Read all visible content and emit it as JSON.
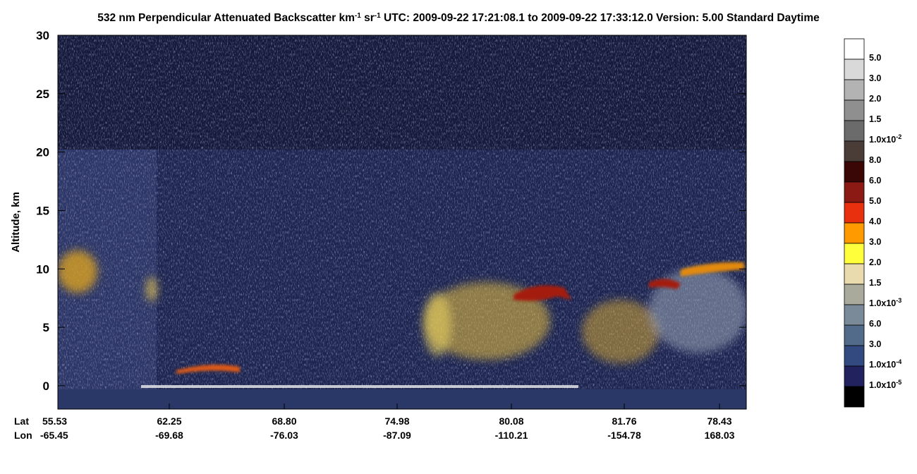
{
  "chart_data": {
    "type": "curtain",
    "title_parts": [
      {
        "text": "532 nm Perpendicular Attenuated Backscatter km"
      },
      {
        "text": "-1",
        "sup": true
      },
      {
        "text": " sr"
      },
      {
        "text": "-1",
        "sup": true
      },
      {
        "text": "  UTC: 2009-09-22 17:21:08.1 to 2009-09-22 17:33:12.0  Version: 5.00 Standard Daytime"
      }
    ],
    "y_label": "Altitude, km",
    "ylim": [
      -2,
      30
    ],
    "yticks": [
      0,
      5,
      10,
      15,
      20,
      25,
      30
    ],
    "x_row_labels": [
      "Lat",
      "Lon"
    ],
    "lat": [
      "55.53",
      "62.25",
      "68.80",
      "74.98",
      "80.08",
      "81.76",
      "78.43"
    ],
    "lon": [
      "-65.45",
      "-69.68",
      "-76.03",
      "-87.09",
      "-110.21",
      "-154.78",
      "168.03"
    ],
    "colorbar": {
      "colors": [
        "#ffffff",
        "#d9d9d9",
        "#b3b3b3",
        "#8f8f8f",
        "#6b6b6b",
        "#4a3d38",
        "#3a0606",
        "#8c1a14",
        "#e8300e",
        "#ff9b00",
        "#ffff3c",
        "#e9dbad",
        "#a9aa9c",
        "#7a8a98",
        "#536b8a",
        "#334a80",
        "#21225e",
        "#000000"
      ],
      "labels": [
        {
          "text": "5.0"
        },
        {
          "text": "3.0"
        },
        {
          "text": "2.0"
        },
        {
          "text": "1.5"
        },
        {
          "text": "1.0x10",
          "sup": "-2"
        },
        {
          "text": "8.0"
        },
        {
          "text": "6.0"
        },
        {
          "text": "5.0"
        },
        {
          "text": "4.0"
        },
        {
          "text": "3.0"
        },
        {
          "text": "2.0"
        },
        {
          "text": "1.5"
        },
        {
          "text": "1.0x10",
          "sup": "-3"
        },
        {
          "text": "6.0"
        },
        {
          "text": "3.0"
        },
        {
          "text": "1.0x10",
          "sup": "-4"
        },
        {
          "text": "1.0x10",
          "sup": "-5"
        }
      ]
    }
  }
}
